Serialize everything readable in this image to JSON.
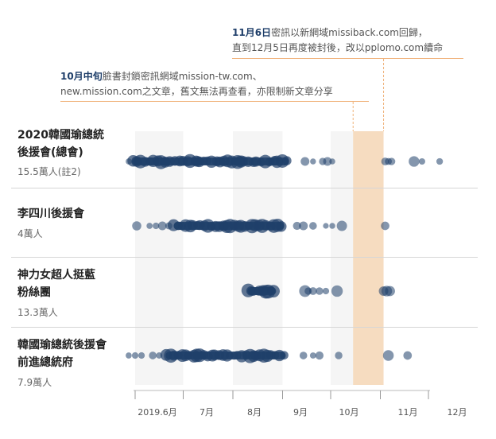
{
  "annotations": {
    "top": {
      "line1_hl": "11月6日",
      "line1_rest": "密訊以新網域missiback.com回歸，",
      "line2": "直到12月5日再度被封後，改以pplomo.com續命"
    },
    "second": {
      "line1_hl": "10月中旬",
      "line1_rest": "臉書封鎖密訊網域mission-tw.com、",
      "line2": "new.mission.com之文章，舊文無法再查看，亦限制新文章分享"
    }
  },
  "colors": {
    "dot": "#1f3f6a",
    "band": "#f5f5f5",
    "highlight": "#f6dcc0",
    "annotation_line": "#f0b27a"
  },
  "chart_data": {
    "type": "scatter",
    "x_axis": {
      "type": "date",
      "range": [
        "2019-05-15",
        "2019-12-31"
      ],
      "ticks": [
        {
          "date": "2019-06-01",
          "label": "2019.6月"
        },
        {
          "date": "2019-07-01",
          "label": "7月"
        },
        {
          "date": "2019-08-01",
          "label": "8月"
        },
        {
          "date": "2019-09-01",
          "label": "9月"
        },
        {
          "date": "2019-10-01",
          "label": "10月"
        },
        {
          "date": "2019-11-01",
          "label": "11月"
        },
        {
          "date": "2019-12-01",
          "label": "12月"
        }
      ]
    },
    "highlight_range": [
      "2019-10-15",
      "2019-11-03"
    ],
    "series": [
      {
        "name_lines": [
          "2020韓國瑜總統",
          "後援會(總會)"
        ],
        "members": "15.5萬人(註2)",
        "dense": [
          [
            "2019-05-30",
            "2019-09-05",
            38
          ]
        ],
        "points": [
          "2019-05-28",
          "2019-06-03",
          "2019-06-20",
          "2019-07-10",
          "2019-08-05",
          "2019-08-25",
          "2019-09-15",
          "2019-09-20",
          "2019-09-26",
          "2019-09-29",
          "2019-10-02",
          "2019-11-04",
          "2019-11-06",
          "2019-11-08",
          "2019-11-22",
          "2019-11-27",
          "2019-12-08"
        ]
      },
      {
        "name_lines": [
          "李四川後援會"
        ],
        "members": "4萬人",
        "dense": [
          [
            "2019-06-25",
            "2019-09-02",
            30
          ]
        ],
        "points": [
          "2019-06-02",
          "2019-06-10",
          "2019-06-14",
          "2019-06-18",
          "2019-06-22",
          "2019-09-10",
          "2019-09-14",
          "2019-09-20",
          "2019-09-28",
          "2019-10-02",
          "2019-10-08",
          "2019-11-04"
        ]
      },
      {
        "name_lines": [
          "神力女超人挺藍",
          "粉絲團"
        ],
        "members": "13.3萬人",
        "dense": [
          [
            "2019-08-10",
            "2019-08-28",
            10
          ]
        ],
        "points": [
          "2019-09-15",
          "2019-09-17",
          "2019-09-20",
          "2019-09-24",
          "2019-09-28",
          "2019-10-05",
          "2019-11-03",
          "2019-11-05",
          "2019-11-07"
        ]
      },
      {
        "name_lines": [
          "韓國瑜總統後援會",
          "前進總統府"
        ],
        "members": "7.9萬人",
        "dense": [
          [
            "2019-06-20",
            "2019-09-03",
            32
          ]
        ],
        "points": [
          "2019-05-28",
          "2019-06-01",
          "2019-06-05",
          "2019-06-12",
          "2019-06-16",
          "2019-09-14",
          "2019-09-20",
          "2019-09-24",
          "2019-10-06",
          "2019-11-06",
          "2019-11-18"
        ]
      }
    ]
  }
}
